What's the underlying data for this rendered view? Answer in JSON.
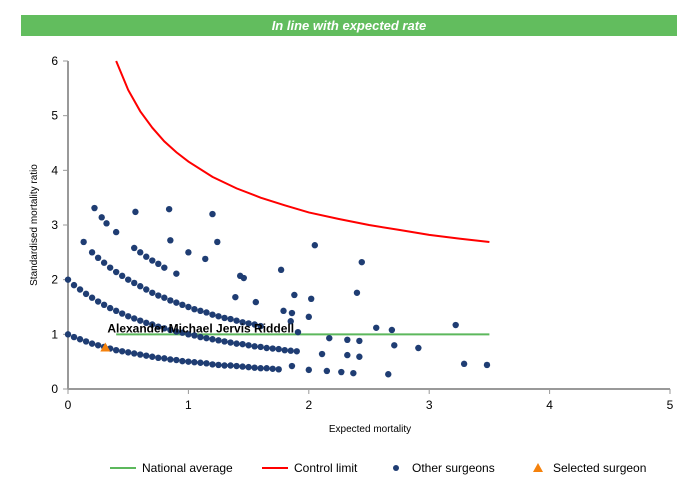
{
  "banner": {
    "text": "In line with expected rate",
    "color": "#62bd5e"
  },
  "chart_data": {
    "type": "scatter",
    "title": "",
    "xlabel": "Expected mortality",
    "ylabel": "Standardised mortality ratio",
    "xlim": [
      0,
      5
    ],
    "ylim": [
      0,
      6
    ],
    "xticks": [
      "0",
      "1",
      "2",
      "3",
      "4",
      "5"
    ],
    "yticks": [
      "0",
      "1",
      "2",
      "3",
      "4",
      "5",
      "6"
    ],
    "grid": false,
    "legend_position": "bottom",
    "national_average": {
      "name": "National average",
      "color": "#5cb85c",
      "x": [
        0.4,
        3.5
      ],
      "y": [
        1,
        1
      ]
    },
    "control_limit": {
      "name": "Control limit",
      "color": "#ff0000",
      "points": [
        [
          0.4,
          6.0
        ],
        [
          0.5,
          5.47
        ],
        [
          0.6,
          5.08
        ],
        [
          0.7,
          4.78
        ],
        [
          0.8,
          4.53
        ],
        [
          0.9,
          4.33
        ],
        [
          1.0,
          4.16
        ],
        [
          1.2,
          3.88
        ],
        [
          1.4,
          3.67
        ],
        [
          1.6,
          3.5
        ],
        [
          1.8,
          3.36
        ],
        [
          2.0,
          3.23
        ],
        [
          2.25,
          3.11
        ],
        [
          2.5,
          3.0
        ],
        [
          2.75,
          2.91
        ],
        [
          3.0,
          2.82
        ],
        [
          3.25,
          2.75
        ],
        [
          3.5,
          2.69
        ]
      ]
    },
    "other_surgeons": {
      "name": "Other surgeons",
      "color": "#1f3d73",
      "points": [
        [
          0,
          1.0
        ],
        [
          0.05,
          0.95
        ],
        [
          0.1,
          0.91
        ],
        [
          0.15,
          0.87
        ],
        [
          0.2,
          0.83
        ],
        [
          0.25,
          0.8
        ],
        [
          0.3,
          0.77
        ],
        [
          0.35,
          0.74
        ],
        [
          0.4,
          0.71
        ],
        [
          0.45,
          0.69
        ],
        [
          0.5,
          0.67
        ],
        [
          0.55,
          0.65
        ],
        [
          0.6,
          0.63
        ],
        [
          0.65,
          0.61
        ],
        [
          0.7,
          0.59
        ],
        [
          0.75,
          0.57
        ],
        [
          0.8,
          0.56
        ],
        [
          0.85,
          0.54
        ],
        [
          0.9,
          0.53
        ],
        [
          0.95,
          0.51
        ],
        [
          1.0,
          0.5
        ],
        [
          1.05,
          0.49
        ],
        [
          1.1,
          0.48
        ],
        [
          1.15,
          0.47
        ],
        [
          1.2,
          0.45
        ],
        [
          1.25,
          0.44
        ],
        [
          1.3,
          0.43
        ],
        [
          1.35,
          0.43
        ],
        [
          1.4,
          0.42
        ],
        [
          1.45,
          0.41
        ],
        [
          1.5,
          0.4
        ],
        [
          1.55,
          0.39
        ],
        [
          1.6,
          0.38
        ],
        [
          1.65,
          0.38
        ],
        [
          1.7,
          0.37
        ],
        [
          1.75,
          0.36
        ],
        [
          0,
          2.0
        ],
        [
          0.05,
          1.9
        ],
        [
          0.1,
          1.82
        ],
        [
          0.15,
          1.74
        ],
        [
          0.2,
          1.67
        ],
        [
          0.25,
          1.6
        ],
        [
          0.3,
          1.54
        ],
        [
          0.35,
          1.48
        ],
        [
          0.4,
          1.43
        ],
        [
          0.45,
          1.38
        ],
        [
          0.5,
          1.33
        ],
        [
          0.55,
          1.29
        ],
        [
          0.6,
          1.25
        ],
        [
          0.65,
          1.21
        ],
        [
          0.7,
          1.18
        ],
        [
          0.75,
          1.14
        ],
        [
          0.8,
          1.11
        ],
        [
          0.85,
          1.08
        ],
        [
          0.9,
          1.05
        ],
        [
          0.95,
          1.03
        ],
        [
          1.0,
          1.0
        ],
        [
          1.05,
          0.98
        ],
        [
          1.1,
          0.95
        ],
        [
          1.15,
          0.93
        ],
        [
          1.2,
          0.91
        ],
        [
          1.25,
          0.89
        ],
        [
          1.3,
          0.87
        ],
        [
          1.35,
          0.85
        ],
        [
          1.4,
          0.83
        ],
        [
          1.45,
          0.82
        ],
        [
          1.5,
          0.8
        ],
        [
          1.55,
          0.78
        ],
        [
          1.6,
          0.77
        ],
        [
          1.65,
          0.75
        ],
        [
          1.7,
          0.74
        ],
        [
          1.75,
          0.73
        ],
        [
          1.8,
          0.71
        ],
        [
          1.85,
          0.7
        ],
        [
          1.9,
          0.69
        ],
        [
          0.2,
          2.5
        ],
        [
          0.25,
          2.4
        ],
        [
          0.3,
          2.31
        ],
        [
          0.35,
          2.22
        ],
        [
          0.4,
          2.14
        ],
        [
          0.45,
          2.07
        ],
        [
          0.5,
          2.0
        ],
        [
          0.55,
          1.94
        ],
        [
          0.6,
          1.88
        ],
        [
          0.65,
          1.82
        ],
        [
          0.7,
          1.76
        ],
        [
          0.75,
          1.71
        ],
        [
          0.8,
          1.67
        ],
        [
          0.85,
          1.62
        ],
        [
          0.9,
          1.58
        ],
        [
          0.95,
          1.54
        ],
        [
          1.0,
          1.5
        ],
        [
          1.05,
          1.46
        ],
        [
          1.1,
          1.43
        ],
        [
          1.15,
          1.4
        ],
        [
          1.2,
          1.36
        ],
        [
          1.25,
          1.33
        ],
        [
          1.3,
          1.3
        ],
        [
          1.35,
          1.28
        ],
        [
          1.4,
          1.25
        ],
        [
          1.45,
          1.22
        ],
        [
          1.5,
          1.2
        ],
        [
          1.55,
          1.18
        ],
        [
          1.6,
          1.15
        ],
        [
          0.55,
          2.58
        ],
        [
          0.6,
          2.5
        ],
        [
          0.65,
          2.42
        ],
        [
          0.7,
          2.35
        ],
        [
          0.75,
          2.29
        ],
        [
          0.8,
          2.22
        ],
        [
          0.9,
          2.11
        ],
        [
          0.22,
          3.31
        ],
        [
          0.28,
          3.14
        ],
        [
          0.32,
          3.03
        ],
        [
          0.4,
          2.87
        ],
        [
          0.56,
          3.24
        ],
        [
          0.84,
          3.29
        ],
        [
          1.2,
          3.2
        ],
        [
          0.13,
          2.69
        ],
        [
          0.85,
          2.72
        ],
        [
          1.24,
          2.69
        ],
        [
          1.0,
          2.5
        ],
        [
          1.14,
          2.38
        ],
        [
          1.43,
          2.07
        ],
        [
          1.46,
          2.03
        ],
        [
          1.77,
          2.18
        ],
        [
          2.05,
          2.63
        ],
        [
          2.44,
          2.32
        ],
        [
          2.4,
          1.76
        ],
        [
          1.88,
          1.72
        ],
        [
          2.02,
          1.65
        ],
        [
          1.39,
          1.68
        ],
        [
          1.56,
          1.59
        ],
        [
          1.79,
          1.43
        ],
        [
          1.86,
          1.39
        ],
        [
          2.0,
          1.32
        ],
        [
          1.85,
          1.24
        ],
        [
          1.91,
          1.04
        ],
        [
          2.17,
          0.93
        ],
        [
          2.56,
          1.12
        ],
        [
          2.69,
          1.08
        ],
        [
          3.22,
          1.17
        ],
        [
          2.32,
          0.9
        ],
        [
          2.42,
          0.88
        ],
        [
          2.71,
          0.8
        ],
        [
          2.91,
          0.75
        ],
        [
          2.11,
          0.64
        ],
        [
          2.32,
          0.62
        ],
        [
          2.42,
          0.59
        ],
        [
          1.86,
          0.42
        ],
        [
          2.0,
          0.35
        ],
        [
          2.15,
          0.33
        ],
        [
          2.27,
          0.31
        ],
        [
          2.37,
          0.29
        ],
        [
          2.66,
          0.27
        ],
        [
          3.29,
          0.46
        ],
        [
          3.48,
          0.44
        ]
      ]
    },
    "selected_surgeon": {
      "name": "Selected surgeon",
      "label": "Alexander Michael Jervis Riddell",
      "color": "#f5820d",
      "x": 0.31,
      "y": 0.76
    }
  }
}
